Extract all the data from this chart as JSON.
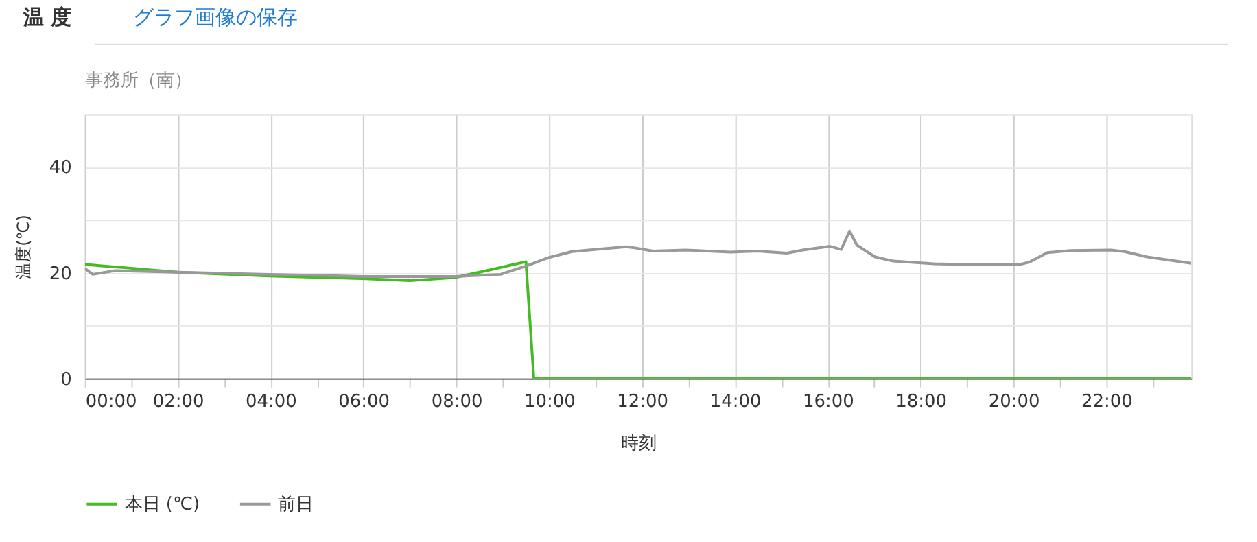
{
  "chart_data": {
    "type": "line",
    "title": "事務所（南）",
    "xlabel": "時刻",
    "ylabel": "温度(℃)",
    "annotations": [
      "温 度",
      "グラフ画像の保存"
    ],
    "series": [
      {
        "name": "本日 (℃)",
        "color": "#44bb22",
        "x": [
          0,
          0.36,
          0.95,
          2,
          3.97,
          5.97,
          7,
          7.97,
          8.65,
          9.5,
          9.67,
          23.83
        ],
        "values": [
          21.6,
          21.3,
          20.9,
          20.1,
          19.4,
          18.9,
          18.5,
          19.1,
          20.4,
          22.1,
          0,
          0
        ]
      },
      {
        "name": "前日",
        "color": "#999999",
        "x": [
          0,
          0.17,
          0.65,
          2,
          3.97,
          5.97,
          7.97,
          8.95,
          9.51,
          10,
          10.49,
          10.98,
          11.66,
          11.85,
          12.24,
          12.93,
          13.9,
          14.49,
          15.12,
          15.46,
          16.05,
          16.29,
          16.47,
          16.63,
          17.02,
          17.41,
          18.29,
          19.27,
          20.15,
          20.34,
          20.73,
          21.22,
          22.1,
          22.39,
          22.88,
          23.83
        ],
        "values": [
          20.8,
          19.7,
          20.4,
          20.1,
          19.7,
          19.3,
          19.3,
          19.7,
          21.3,
          22.9,
          24.0,
          24.4,
          24.9,
          24.7,
          24.1,
          24.3,
          23.9,
          24.1,
          23.7,
          24.3,
          25.0,
          24.4,
          27.9,
          25.2,
          23.0,
          22.2,
          21.7,
          21.5,
          21.6,
          22.0,
          23.8,
          24.2,
          24.3,
          24.0,
          23.0,
          21.8
        ]
      }
    ],
    "xlim": [
      0,
      23.83
    ],
    "xticks": [
      {
        "value": 0,
        "label": "00:00"
      },
      {
        "value": 1,
        "label": null
      },
      {
        "value": 2,
        "label": "02:00"
      },
      {
        "value": 3,
        "label": null
      },
      {
        "value": 4,
        "label": "04:00"
      },
      {
        "value": 5,
        "label": null
      },
      {
        "value": 6,
        "label": "06:00"
      },
      {
        "value": 7,
        "label": null
      },
      {
        "value": 8,
        "label": "08:00"
      },
      {
        "value": 9,
        "label": null
      },
      {
        "value": 10,
        "label": "10:00"
      },
      {
        "value": 11,
        "label": null
      },
      {
        "value": 12,
        "label": "12:00"
      },
      {
        "value": 13,
        "label": null
      },
      {
        "value": 14,
        "label": "14:00"
      },
      {
        "value": 15,
        "label": null
      },
      {
        "value": 16,
        "label": "16:00"
      },
      {
        "value": 17,
        "label": null
      },
      {
        "value": 18,
        "label": "18:00"
      },
      {
        "value": 19,
        "label": null
      },
      {
        "value": 20,
        "label": "20:00"
      },
      {
        "value": 21,
        "label": null
      },
      {
        "value": 22,
        "label": "22:00"
      },
      {
        "value": 23,
        "label": null
      }
    ],
    "ylim": [
      0,
      50
    ],
    "yticks": [
      0,
      {
        "value": 10,
        "label": null
      },
      20,
      {
        "value": 30,
        "label": null
      },
      40,
      {
        "value": 50,
        "label": null
      }
    ],
    "grid": true,
    "legend": "bottom",
    "marker": "none",
    "line_style": "solid"
  }
}
